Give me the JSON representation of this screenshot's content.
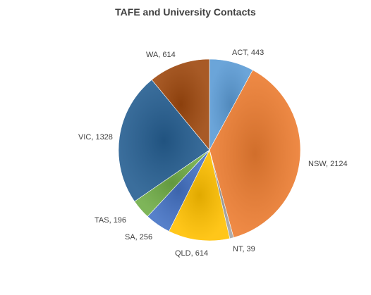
{
  "chart_data": {
    "type": "pie",
    "title": "TAFE and University Contacts",
    "categories": [
      "ACT",
      "NSW",
      "NT",
      "QLD",
      "SA",
      "TAS",
      "VIC",
      "WA"
    ],
    "values": [
      443,
      2124,
      39,
      614,
      256,
      196,
      1328,
      614
    ],
    "data_labels": [
      "ACT, 443",
      "NSW, 2124",
      "NT, 39",
      "QLD, 614",
      "SA, 256",
      "TAS, 196",
      "VIC, 1328",
      "WA, 614"
    ],
    "colors": [
      "#5B9BD5",
      "#ED7D31",
      "#A5A5A5",
      "#FFC000",
      "#4472C4",
      "#70AD47",
      "#255E91",
      "#9E480E"
    ],
    "legend": "none",
    "start_angle": "12 o'clock",
    "direction": "clockwise"
  }
}
